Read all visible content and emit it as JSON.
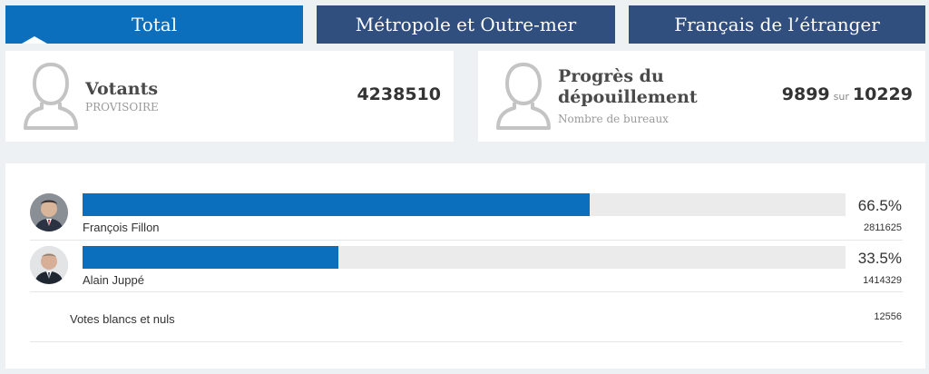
{
  "tabs": [
    {
      "label": "Total",
      "active": true
    },
    {
      "label": "Métropole et Outre-mer",
      "active": false
    },
    {
      "label": "Français de l’étranger",
      "active": false
    }
  ],
  "voters": {
    "title": "Votants",
    "subtitle": "PROVISOIRE",
    "value": "4238510",
    "icon": "user-silhouette-icon"
  },
  "progress": {
    "title_line1": "Progrès du",
    "title_line2": "dépouillement",
    "subtitle": "Nombre de bureaux",
    "counted": "9899",
    "separator": "sur",
    "total": "10229",
    "icon": "user-silhouette-icon"
  },
  "candidates": [
    {
      "name": "François Fillon",
      "percent_label": "66.5%",
      "percent": 66.5,
      "votes": "2811625"
    },
    {
      "name": "Alain Juppé",
      "percent_label": "33.5%",
      "percent": 33.5,
      "votes": "1414329"
    }
  ],
  "blank_votes": {
    "label": "Votes blancs et nuls",
    "value": "12556"
  },
  "colors": {
    "accent": "#0b6fbd",
    "tab_inactive": "#304f7e",
    "track": "#ebebeb",
    "icon_gray": "#c4c4c4"
  }
}
